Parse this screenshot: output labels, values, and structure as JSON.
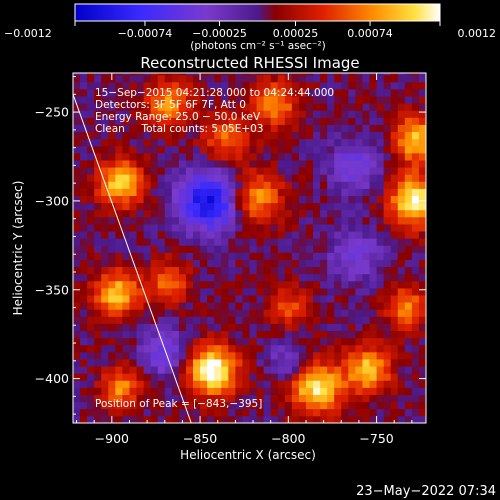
{
  "chart_data": {
    "type": "heatmap",
    "title": "Reconstructed RHESSI Image",
    "xlabel": "Heliocentric X (arcsec)",
    "ylabel": "Heliocentric Y (arcsec)",
    "xlim": [
      -922,
      -722
    ],
    "ylim": [
      -425,
      -228
    ],
    "x_ticks": [
      -900,
      -850,
      -800,
      -750
    ],
    "y_ticks": [
      -250,
      -300,
      -350,
      -400
    ],
    "x_tick_labels": [
      "−900",
      "−850",
      "−800",
      "−750"
    ],
    "y_tick_labels": [
      "−250",
      "−300",
      "−350",
      "−400"
    ],
    "colorbar": {
      "min": -0.0012,
      "max": 0.0012,
      "ticks": [
        -0.0012,
        -0.00074,
        -0.00025,
        0.00025,
        0.00074,
        0.0012
      ],
      "tick_labels": [
        "−0.0012",
        "−0.00074",
        "−0.00025",
        "0.00025",
        "0.00074",
        "0.0012"
      ],
      "unit_label": "(photons cm⁻² s⁻¹ asec⁻²)"
    },
    "annotations": [
      "15−Sep−2015 04:21:28.000 to 04:24:44.000",
      "Detectors: 3F 5F 6F 7F, Att 0",
      "Energy Range: 25.0 − 50.0 keV",
      "Clean     Total counts: 5.05E+03"
    ],
    "peak_label": "Position of Peak = [−843,−395]",
    "peak": [
      -843,
      -395
    ],
    "limb_line": {
      "x": [
        -922,
        -855
      ],
      "y": [
        -240,
        -425
      ]
    },
    "sources": [
      {
        "x": -843,
        "y": -395,
        "amp": 0.0012,
        "sigma": 10
      },
      {
        "x": -728,
        "y": -300,
        "amp": 0.00115,
        "sigma": 10
      },
      {
        "x": -728,
        "y": -265,
        "amp": 0.0009,
        "sigma": 9
      },
      {
        "x": -784,
        "y": -405,
        "amp": 0.00105,
        "sigma": 10
      },
      {
        "x": -755,
        "y": -395,
        "amp": 0.0009,
        "sigma": 9
      },
      {
        "x": -895,
        "y": -290,
        "amp": 0.00095,
        "sigma": 9
      },
      {
        "x": -868,
        "y": -245,
        "amp": 0.0007,
        "sigma": 9
      },
      {
        "x": -835,
        "y": -265,
        "amp": 0.0006,
        "sigma": 9
      },
      {
        "x": -808,
        "y": -245,
        "amp": 0.0007,
        "sigma": 9
      },
      {
        "x": -818,
        "y": -298,
        "amp": 0.00075,
        "sigma": 10
      },
      {
        "x": -897,
        "y": -352,
        "amp": 0.0009,
        "sigma": 9
      },
      {
        "x": -868,
        "y": -345,
        "amp": 0.0006,
        "sigma": 8
      },
      {
        "x": -895,
        "y": -405,
        "amp": 0.0007,
        "sigma": 8
      },
      {
        "x": -733,
        "y": -360,
        "amp": 0.0007,
        "sigma": 8
      },
      {
        "x": -800,
        "y": -360,
        "amp": 0.0005,
        "sigma": 8
      },
      {
        "x": -845,
        "y": -300,
        "amp": -0.0011,
        "sigma": 12
      },
      {
        "x": -870,
        "y": -385,
        "amp": -0.0006,
        "sigma": 9
      },
      {
        "x": -762,
        "y": -280,
        "amp": -0.00055,
        "sigma": 10
      },
      {
        "x": -800,
        "y": -390,
        "amp": -0.0004,
        "sigma": 8
      },
      {
        "x": -762,
        "y": -330,
        "amp": -0.0005,
        "sigma": 10
      }
    ]
  },
  "footer": {
    "timestamp": "23−May−2022 07:34"
  }
}
